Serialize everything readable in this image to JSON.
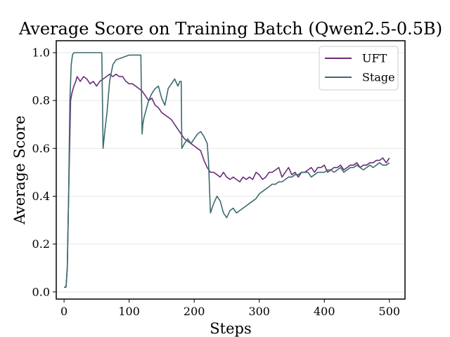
{
  "chart_data": {
    "type": "line",
    "title": "Average Score on Training Batch (Qwen2.5-0.5B)",
    "xlabel": "Steps",
    "ylabel": "Average Score",
    "xlim": [
      -12,
      524
    ],
    "ylim": [
      -0.03,
      1.05
    ],
    "xticks": [
      0,
      100,
      200,
      300,
      400,
      500
    ],
    "yticks": [
      0.0,
      0.2,
      0.4,
      0.6,
      0.8,
      1.0
    ],
    "grid": "horizontal",
    "legend_position": "top-right",
    "series": [
      {
        "name": "UFT",
        "color": "#6a2c7a",
        "x": [
          0,
          3,
          5,
          7,
          10,
          12,
          15,
          18,
          20,
          25,
          30,
          35,
          40,
          45,
          50,
          55,
          60,
          65,
          70,
          75,
          80,
          85,
          90,
          95,
          100,
          105,
          110,
          115,
          120,
          125,
          130,
          135,
          140,
          145,
          150,
          155,
          160,
          165,
          170,
          175,
          180,
          185,
          190,
          195,
          200,
          205,
          210,
          215,
          220,
          225,
          230,
          235,
          240,
          245,
          250,
          255,
          260,
          265,
          270,
          275,
          280,
          285,
          290,
          295,
          300,
          305,
          310,
          315,
          320,
          325,
          330,
          335,
          340,
          345,
          350,
          355,
          360,
          365,
          370,
          375,
          380,
          385,
          390,
          395,
          400,
          405,
          410,
          415,
          420,
          425,
          430,
          435,
          440,
          445,
          450,
          455,
          460,
          465,
          470,
          475,
          480,
          485,
          490,
          495,
          500
        ],
        "y": [
          0.02,
          0.02,
          0.1,
          0.4,
          0.8,
          0.83,
          0.86,
          0.88,
          0.9,
          0.88,
          0.9,
          0.89,
          0.87,
          0.88,
          0.86,
          0.88,
          0.89,
          0.9,
          0.91,
          0.9,
          0.91,
          0.9,
          0.9,
          0.88,
          0.87,
          0.87,
          0.86,
          0.85,
          0.84,
          0.82,
          0.8,
          0.81,
          0.78,
          0.77,
          0.75,
          0.74,
          0.73,
          0.72,
          0.7,
          0.68,
          0.66,
          0.64,
          0.63,
          0.62,
          0.61,
          0.6,
          0.59,
          0.55,
          0.52,
          0.5,
          0.5,
          0.49,
          0.48,
          0.5,
          0.48,
          0.47,
          0.48,
          0.47,
          0.46,
          0.48,
          0.47,
          0.48,
          0.47,
          0.5,
          0.49,
          0.47,
          0.48,
          0.5,
          0.5,
          0.51,
          0.52,
          0.48,
          0.5,
          0.52,
          0.49,
          0.5,
          0.48,
          0.5,
          0.5,
          0.51,
          0.52,
          0.5,
          0.52,
          0.52,
          0.53,
          0.5,
          0.51,
          0.52,
          0.52,
          0.53,
          0.51,
          0.52,
          0.53,
          0.53,
          0.54,
          0.52,
          0.53,
          0.53,
          0.54,
          0.54,
          0.55,
          0.55,
          0.56,
          0.54,
          0.56
        ]
      },
      {
        "name": "Stage",
        "color": "#3d6b6e",
        "x": [
          0,
          3,
          5,
          7,
          9,
          11,
          13,
          15,
          20,
          30,
          40,
          50,
          58,
          60,
          61,
          63,
          66,
          70,
          75,
          80,
          90,
          100,
          110,
          118,
          120,
          121,
          123,
          126,
          130,
          135,
          140,
          145,
          150,
          155,
          160,
          165,
          170,
          175,
          178,
          180,
          181,
          185,
          190,
          195,
          200,
          205,
          210,
          215,
          220,
          222,
          224,
          225,
          230,
          235,
          240,
          245,
          250,
          255,
          260,
          265,
          270,
          275,
          280,
          285,
          290,
          295,
          300,
          305,
          310,
          315,
          320,
          325,
          330,
          335,
          340,
          345,
          350,
          355,
          360,
          365,
          370,
          375,
          380,
          385,
          390,
          395,
          400,
          405,
          410,
          415,
          420,
          425,
          430,
          435,
          440,
          445,
          450,
          455,
          460,
          465,
          470,
          475,
          480,
          485,
          490,
          495,
          500
        ],
        "y": [
          0.02,
          0.02,
          0.1,
          0.4,
          0.8,
          0.95,
          0.99,
          1.0,
          1.0,
          1.0,
          1.0,
          1.0,
          1.0,
          0.6,
          0.63,
          0.68,
          0.75,
          0.88,
          0.95,
          0.97,
          0.98,
          0.99,
          0.99,
          0.99,
          0.66,
          0.7,
          0.73,
          0.76,
          0.8,
          0.83,
          0.85,
          0.86,
          0.81,
          0.78,
          0.85,
          0.87,
          0.89,
          0.86,
          0.88,
          0.88,
          0.6,
          0.62,
          0.64,
          0.62,
          0.64,
          0.66,
          0.67,
          0.65,
          0.62,
          0.55,
          0.4,
          0.33,
          0.37,
          0.4,
          0.38,
          0.33,
          0.31,
          0.34,
          0.35,
          0.33,
          0.34,
          0.35,
          0.36,
          0.37,
          0.38,
          0.39,
          0.41,
          0.42,
          0.43,
          0.44,
          0.45,
          0.45,
          0.46,
          0.46,
          0.47,
          0.48,
          0.48,
          0.49,
          0.49,
          0.5,
          0.5,
          0.5,
          0.48,
          0.49,
          0.5,
          0.5,
          0.5,
          0.51,
          0.51,
          0.5,
          0.51,
          0.52,
          0.5,
          0.51,
          0.52,
          0.52,
          0.53,
          0.52,
          0.51,
          0.52,
          0.53,
          0.52,
          0.53,
          0.54,
          0.53,
          0.53,
          0.54
        ]
      }
    ]
  }
}
